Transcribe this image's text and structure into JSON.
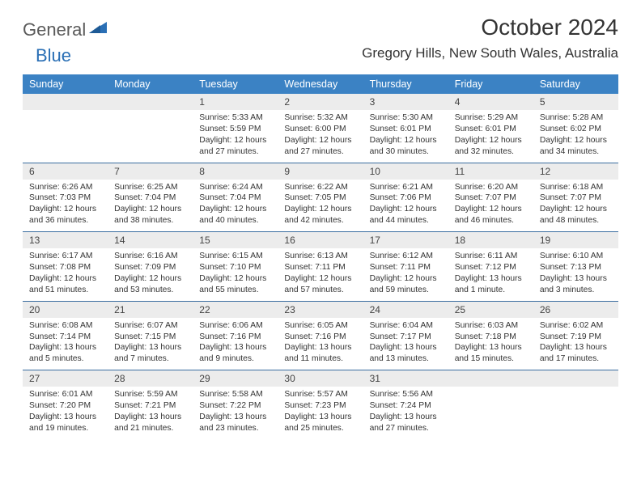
{
  "logo": {
    "general": "General",
    "blue": "Blue"
  },
  "title": "October 2024",
  "location": "Gregory Hills, New South Wales, Australia",
  "colors": {
    "header_bg": "#3b82c4",
    "header_text": "#ffffff",
    "daynum_bg": "#ececec",
    "week_divider": "#3b6ea0",
    "logo_blue": "#2a6fb5",
    "logo_gray": "#5a5a5a"
  },
  "day_names": [
    "Sunday",
    "Monday",
    "Tuesday",
    "Wednesday",
    "Thursday",
    "Friday",
    "Saturday"
  ],
  "weeks": [
    [
      null,
      null,
      {
        "n": "1",
        "sr": "Sunrise: 5:33 AM",
        "ss": "Sunset: 5:59 PM",
        "dl": "Daylight: 12 hours and 27 minutes."
      },
      {
        "n": "2",
        "sr": "Sunrise: 5:32 AM",
        "ss": "Sunset: 6:00 PM",
        "dl": "Daylight: 12 hours and 27 minutes."
      },
      {
        "n": "3",
        "sr": "Sunrise: 5:30 AM",
        "ss": "Sunset: 6:01 PM",
        "dl": "Daylight: 12 hours and 30 minutes."
      },
      {
        "n": "4",
        "sr": "Sunrise: 5:29 AM",
        "ss": "Sunset: 6:01 PM",
        "dl": "Daylight: 12 hours and 32 minutes."
      },
      {
        "n": "5",
        "sr": "Sunrise: 5:28 AM",
        "ss": "Sunset: 6:02 PM",
        "dl": "Daylight: 12 hours and 34 minutes."
      }
    ],
    [
      {
        "n": "6",
        "sr": "Sunrise: 6:26 AM",
        "ss": "Sunset: 7:03 PM",
        "dl": "Daylight: 12 hours and 36 minutes."
      },
      {
        "n": "7",
        "sr": "Sunrise: 6:25 AM",
        "ss": "Sunset: 7:04 PM",
        "dl": "Daylight: 12 hours and 38 minutes."
      },
      {
        "n": "8",
        "sr": "Sunrise: 6:24 AM",
        "ss": "Sunset: 7:04 PM",
        "dl": "Daylight: 12 hours and 40 minutes."
      },
      {
        "n": "9",
        "sr": "Sunrise: 6:22 AM",
        "ss": "Sunset: 7:05 PM",
        "dl": "Daylight: 12 hours and 42 minutes."
      },
      {
        "n": "10",
        "sr": "Sunrise: 6:21 AM",
        "ss": "Sunset: 7:06 PM",
        "dl": "Daylight: 12 hours and 44 minutes."
      },
      {
        "n": "11",
        "sr": "Sunrise: 6:20 AM",
        "ss": "Sunset: 7:07 PM",
        "dl": "Daylight: 12 hours and 46 minutes."
      },
      {
        "n": "12",
        "sr": "Sunrise: 6:18 AM",
        "ss": "Sunset: 7:07 PM",
        "dl": "Daylight: 12 hours and 48 minutes."
      }
    ],
    [
      {
        "n": "13",
        "sr": "Sunrise: 6:17 AM",
        "ss": "Sunset: 7:08 PM",
        "dl": "Daylight: 12 hours and 51 minutes."
      },
      {
        "n": "14",
        "sr": "Sunrise: 6:16 AM",
        "ss": "Sunset: 7:09 PM",
        "dl": "Daylight: 12 hours and 53 minutes."
      },
      {
        "n": "15",
        "sr": "Sunrise: 6:15 AM",
        "ss": "Sunset: 7:10 PM",
        "dl": "Daylight: 12 hours and 55 minutes."
      },
      {
        "n": "16",
        "sr": "Sunrise: 6:13 AM",
        "ss": "Sunset: 7:11 PM",
        "dl": "Daylight: 12 hours and 57 minutes."
      },
      {
        "n": "17",
        "sr": "Sunrise: 6:12 AM",
        "ss": "Sunset: 7:11 PM",
        "dl": "Daylight: 12 hours and 59 minutes."
      },
      {
        "n": "18",
        "sr": "Sunrise: 6:11 AM",
        "ss": "Sunset: 7:12 PM",
        "dl": "Daylight: 13 hours and 1 minute."
      },
      {
        "n": "19",
        "sr": "Sunrise: 6:10 AM",
        "ss": "Sunset: 7:13 PM",
        "dl": "Daylight: 13 hours and 3 minutes."
      }
    ],
    [
      {
        "n": "20",
        "sr": "Sunrise: 6:08 AM",
        "ss": "Sunset: 7:14 PM",
        "dl": "Daylight: 13 hours and 5 minutes."
      },
      {
        "n": "21",
        "sr": "Sunrise: 6:07 AM",
        "ss": "Sunset: 7:15 PM",
        "dl": "Daylight: 13 hours and 7 minutes."
      },
      {
        "n": "22",
        "sr": "Sunrise: 6:06 AM",
        "ss": "Sunset: 7:16 PM",
        "dl": "Daylight: 13 hours and 9 minutes."
      },
      {
        "n": "23",
        "sr": "Sunrise: 6:05 AM",
        "ss": "Sunset: 7:16 PM",
        "dl": "Daylight: 13 hours and 11 minutes."
      },
      {
        "n": "24",
        "sr": "Sunrise: 6:04 AM",
        "ss": "Sunset: 7:17 PM",
        "dl": "Daylight: 13 hours and 13 minutes."
      },
      {
        "n": "25",
        "sr": "Sunrise: 6:03 AM",
        "ss": "Sunset: 7:18 PM",
        "dl": "Daylight: 13 hours and 15 minutes."
      },
      {
        "n": "26",
        "sr": "Sunrise: 6:02 AM",
        "ss": "Sunset: 7:19 PM",
        "dl": "Daylight: 13 hours and 17 minutes."
      }
    ],
    [
      {
        "n": "27",
        "sr": "Sunrise: 6:01 AM",
        "ss": "Sunset: 7:20 PM",
        "dl": "Daylight: 13 hours and 19 minutes."
      },
      {
        "n": "28",
        "sr": "Sunrise: 5:59 AM",
        "ss": "Sunset: 7:21 PM",
        "dl": "Daylight: 13 hours and 21 minutes."
      },
      {
        "n": "29",
        "sr": "Sunrise: 5:58 AM",
        "ss": "Sunset: 7:22 PM",
        "dl": "Daylight: 13 hours and 23 minutes."
      },
      {
        "n": "30",
        "sr": "Sunrise: 5:57 AM",
        "ss": "Sunset: 7:23 PM",
        "dl": "Daylight: 13 hours and 25 minutes."
      },
      {
        "n": "31",
        "sr": "Sunrise: 5:56 AM",
        "ss": "Sunset: 7:24 PM",
        "dl": "Daylight: 13 hours and 27 minutes."
      },
      null,
      null
    ]
  ]
}
